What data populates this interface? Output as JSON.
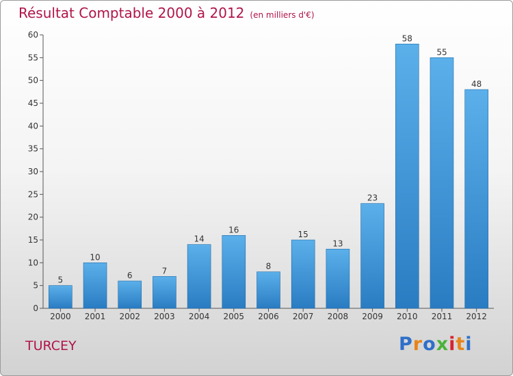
{
  "header": {
    "title": "Résultat Comptable 2000 à 2012",
    "unit": "(en milliers d'€)"
  },
  "commune": "TURCEY",
  "logo": {
    "letters": [
      "P",
      "r",
      "o",
      "x",
      "i",
      "t",
      "i"
    ],
    "colors": [
      "#2e6fc9",
      "#e8841a",
      "#2e6fc9",
      "#4ab23a",
      "#d8222e",
      "#e8841a",
      "#2e6fc9"
    ]
  },
  "colors": {
    "bar_top": "#5bb0ea",
    "bar_bottom": "#2a7cc2",
    "title": "#b0134a"
  },
  "chart_data": {
    "type": "bar",
    "title": "Résultat Comptable 2000 à 2012",
    "categories": [
      "2000",
      "2001",
      "2002",
      "2003",
      "2004",
      "2005",
      "2006",
      "2007",
      "2008",
      "2009",
      "2010",
      "2011",
      "2012"
    ],
    "values": [
      5,
      10,
      6,
      7,
      14,
      16,
      8,
      15,
      13,
      23,
      58,
      55,
      48
    ],
    "ylim": [
      0,
      60
    ],
    "yticks": [
      0,
      5,
      10,
      15,
      20,
      25,
      30,
      35,
      40,
      45,
      50,
      55,
      60
    ],
    "grid": false,
    "legend": "none"
  }
}
